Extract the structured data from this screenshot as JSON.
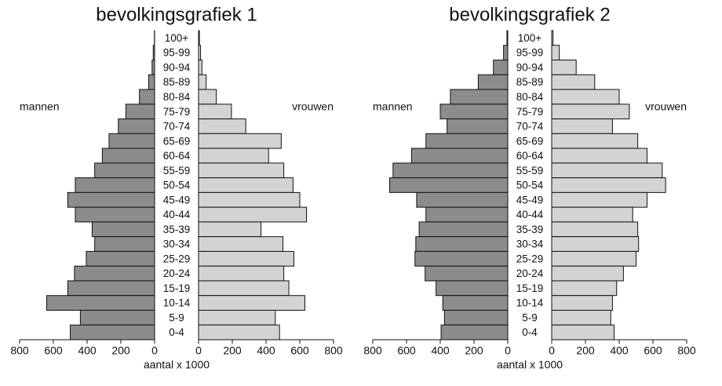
{
  "chart_data": [
    {
      "type": "pyramid",
      "title": "bevolkingsgrafiek 1",
      "xlabel": "aantal x 1000",
      "categories": [
        "100+",
        "95-99",
        "90-94",
        "85-89",
        "80-84",
        "75-79",
        "70-74",
        "65-69",
        "60-64",
        "55-59",
        "50-54",
        "45-49",
        "40-44",
        "35-39",
        "30-34",
        "25-29",
        "20-24",
        "15-19",
        "10-14",
        "5-9",
        "0-4"
      ],
      "series": [
        {
          "name": "mannen",
          "color": "#8c8c8c",
          "values": [
            1,
            8,
            15,
            35,
            90,
            170,
            215,
            270,
            310,
            355,
            470,
            515,
            470,
            370,
            355,
            405,
            475,
            515,
            640,
            440,
            500
          ]
        },
        {
          "name": "vrouwen",
          "color": "#d3d3d3",
          "values": [
            5,
            12,
            20,
            45,
            105,
            195,
            280,
            490,
            415,
            505,
            560,
            600,
            640,
            370,
            500,
            565,
            505,
            535,
            630,
            455,
            480
          ]
        }
      ],
      "xlim": [
        0,
        800
      ],
      "xticks": [
        0,
        200,
        400,
        600,
        800
      ]
    },
    {
      "type": "pyramid",
      "title": "bevolkingsgrafiek 2",
      "xlabel": "aantal x 1000",
      "categories": [
        "100+",
        "95-99",
        "90-94",
        "85-89",
        "80-84",
        "75-79",
        "70-74",
        "65-69",
        "60-64",
        "55-59",
        "50-54",
        "45-49",
        "40-44",
        "35-39",
        "30-34",
        "25-29",
        "20-24",
        "15-19",
        "10-14",
        "5-9",
        "0-4"
      ],
      "series": [
        {
          "name": "mannen",
          "color": "#8c8c8c",
          "values": [
            5,
            25,
            85,
            175,
            340,
            400,
            360,
            485,
            570,
            680,
            700,
            540,
            485,
            525,
            545,
            550,
            490,
            425,
            385,
            375,
            395
          ]
        },
        {
          "name": "vrouwen",
          "color": "#d3d3d3",
          "values": [
            8,
            45,
            145,
            255,
            400,
            460,
            360,
            510,
            565,
            655,
            675,
            565,
            480,
            510,
            515,
            500,
            425,
            385,
            360,
            350,
            370
          ]
        }
      ],
      "xlim": [
        0,
        800
      ],
      "xticks": [
        0,
        200,
        400,
        600,
        800
      ]
    }
  ]
}
